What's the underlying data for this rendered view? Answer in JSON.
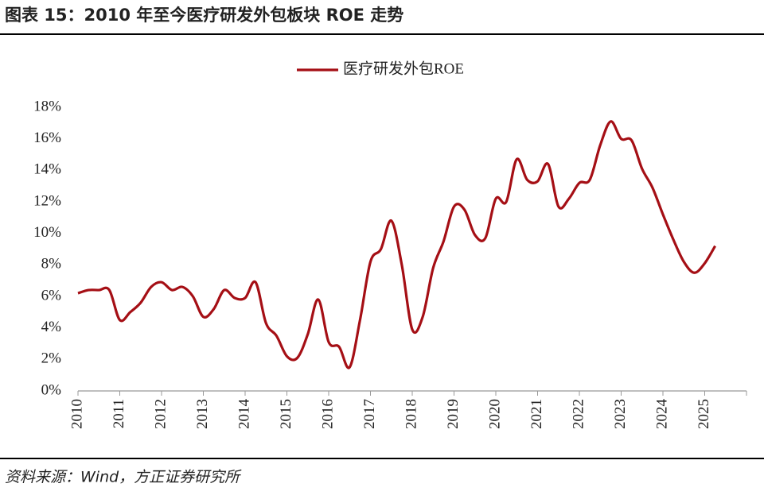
{
  "chart_data": {
    "type": "line",
    "title": "图表 15：2010 年至今医疗研发外包板块 ROE 走势",
    "source": "资料来源：Wind，方正证券研究所",
    "x": [
      2010,
      2010.25,
      2010.5,
      2010.75,
      2011,
      2011.25,
      2011.5,
      2011.75,
      2012,
      2012.25,
      2012.5,
      2012.75,
      2013,
      2013.25,
      2013.5,
      2013.75,
      2014,
      2014.25,
      2014.5,
      2014.75,
      2015,
      2015.25,
      2015.5,
      2015.75,
      2016,
      2016.25,
      2016.5,
      2016.75,
      2017,
      2017.25,
      2017.5,
      2017.75,
      2018,
      2018.25,
      2018.5,
      2018.75,
      2019,
      2019.25,
      2019.5,
      2019.75,
      2020,
      2020.25,
      2020.5,
      2020.75,
      2021,
      2021.25,
      2021.5,
      2021.75,
      2022,
      2022.25,
      2022.5,
      2022.75,
      2023,
      2023.25,
      2023.5,
      2023.75,
      2024,
      2024.25,
      2024.5,
      2024.75,
      2025,
      2025.25
    ],
    "series": [
      {
        "name": "医疗研发外包ROE",
        "color": "#a50f15",
        "values": [
          6.2,
          6.4,
          6.4,
          6.4,
          4.5,
          5.0,
          5.6,
          6.6,
          6.9,
          6.4,
          6.6,
          6.0,
          4.7,
          5.2,
          6.4,
          5.9,
          5.9,
          6.9,
          4.3,
          3.5,
          2.2,
          2.1,
          3.6,
          5.8,
          3.1,
          2.8,
          1.5,
          4.5,
          8.2,
          9.0,
          10.8,
          8.0,
          3.9,
          4.7,
          7.8,
          9.5,
          11.7,
          11.5,
          9.9,
          9.7,
          12.2,
          12.0,
          14.7,
          13.4,
          13.3,
          14.4,
          11.7,
          12.2,
          13.2,
          13.4,
          15.6,
          17.1,
          16.0,
          15.9,
          14.1,
          12.9,
          11.2,
          9.6,
          8.2,
          7.5,
          8.1,
          9.2
        ]
      }
    ],
    "xlim": [
      2010,
      2026
    ],
    "xticks": [
      2010,
      2011,
      2012,
      2013,
      2014,
      2015,
      2016,
      2017,
      2018,
      2019,
      2020,
      2021,
      2022,
      2023,
      2024,
      2025
    ],
    "ylim": [
      0,
      18
    ],
    "yticks": [
      {
        "value": 0,
        "label": "0%"
      },
      {
        "value": 2,
        "label": "2%"
      },
      {
        "value": 4,
        "label": "4%"
      },
      {
        "value": 6,
        "label": "6%"
      },
      {
        "value": 8,
        "label": "8%"
      },
      {
        "value": 10,
        "label": "10%"
      },
      {
        "value": 12,
        "label": "12%"
      },
      {
        "value": 14,
        "label": "14%"
      },
      {
        "value": 16,
        "label": "16%"
      },
      {
        "value": 18,
        "label": "18%"
      }
    ],
    "legend": "top",
    "grid": false
  }
}
